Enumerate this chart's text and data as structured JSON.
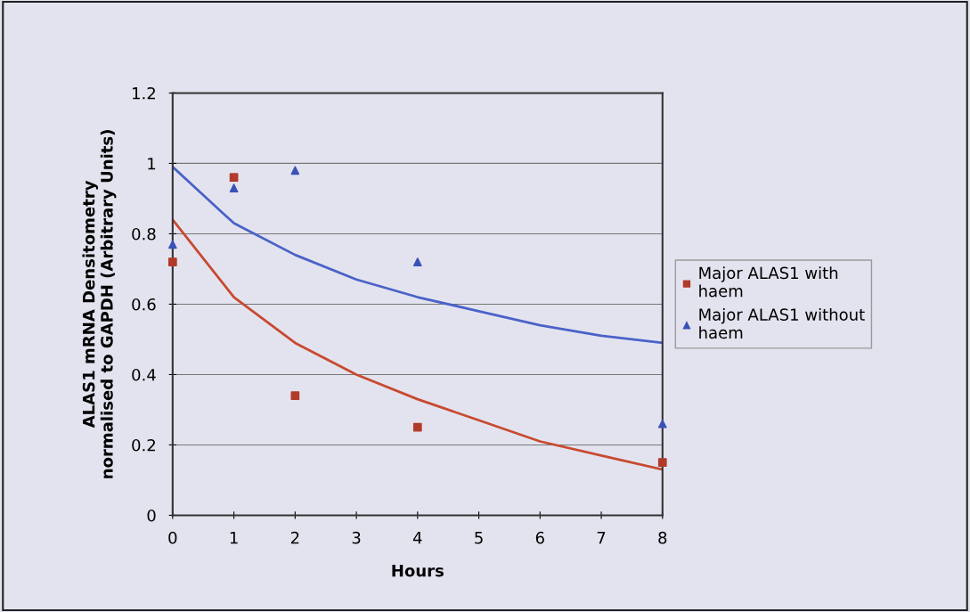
{
  "chart_data": {
    "type": "scatter",
    "xlabel": "Hours",
    "ylabel": "ALAS1 mRNA Densitometry\nnormalised to GAPDH (Arbitrary Units)",
    "xlim": [
      0,
      8
    ],
    "xticks": [
      0,
      1,
      2,
      3,
      4,
      5,
      6,
      7,
      8
    ],
    "ylim": [
      0,
      1.2
    ],
    "yticks": [
      0,
      0.2,
      0.4,
      0.6,
      0.8,
      1,
      1.2
    ],
    "grid": "y",
    "legend": "right",
    "series": [
      {
        "name": "Major ALAS1 with haem",
        "marker": "square",
        "color": "#b23a2a",
        "x": [
          0,
          1,
          2,
          4,
          8
        ],
        "values": [
          0.72,
          0.96,
          0.34,
          0.25,
          0.15
        ]
      },
      {
        "name": "Major ALAS1 without haem",
        "marker": "triangle",
        "color": "#3a52b8",
        "x": [
          0,
          1,
          2,
          4,
          8
        ],
        "values": [
          0.77,
          0.93,
          0.98,
          0.72,
          0.26
        ]
      },
      {
        "type": "line",
        "marker": "none",
        "color": "#c84a30",
        "x": [
          0,
          0.5,
          1,
          2,
          3,
          4,
          5,
          6,
          7,
          8
        ],
        "values": [
          0.84,
          0.73,
          0.62,
          0.49,
          0.4,
          0.33,
          0.27,
          0.21,
          0.17,
          0.13
        ]
      },
      {
        "type": "line",
        "marker": "none",
        "color": "#4a62c8",
        "x": [
          0,
          0.5,
          1,
          2,
          3,
          4,
          5,
          6,
          7,
          8
        ],
        "values": [
          0.99,
          0.91,
          0.83,
          0.74,
          0.67,
          0.62,
          0.58,
          0.54,
          0.51,
          0.49
        ]
      }
    ]
  }
}
